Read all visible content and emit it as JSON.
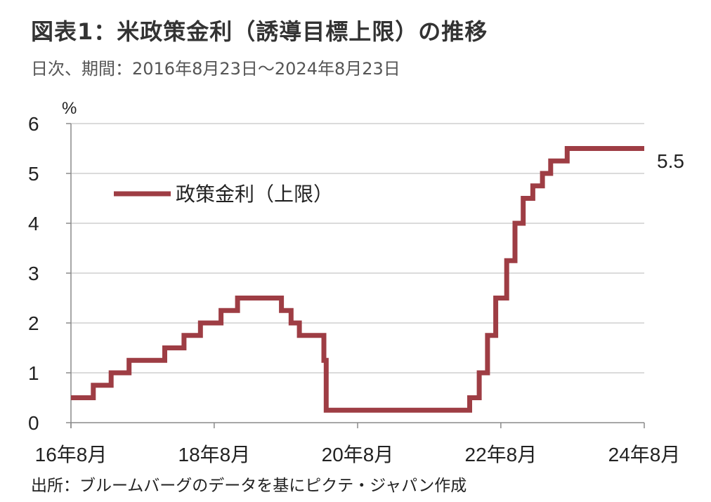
{
  "header": {
    "title": "図表1：米政策金利（誘導目標上限）の推移",
    "subtitle": "日次、期間：2016年8月23日～2024年8月23日"
  },
  "footer": {
    "source": "出所：ブルームバーグのデータを基にピクテ・ジャパン作成"
  },
  "chart_data": {
    "type": "line",
    "title": "図表1：米政策金利（誘導目標上限）の推移",
    "subtitle": "日次、期間：2016年8月23日～2024年8月23日",
    "y_unit_label": "%",
    "ylim": [
      0,
      6
    ],
    "y_ticks": [
      "0",
      "1",
      "2",
      "3",
      "4",
      "5",
      "6"
    ],
    "xlim": [
      "2016-08-23",
      "2024-08-23"
    ],
    "x_ticks": [
      {
        "date": "2016-08-23",
        "label": "16年8月"
      },
      {
        "date": "2018-08-23",
        "label": "18年8月"
      },
      {
        "date": "2020-08-23",
        "label": "20年8月"
      },
      {
        "date": "2022-08-23",
        "label": "22年8月"
      },
      {
        "date": "2024-08-23",
        "label": "24年8月"
      }
    ],
    "grid": true,
    "legend_position": "upper-left",
    "end_label": "5.5",
    "series": [
      {
        "name": "政策金利（上限）",
        "color": "#9e3d44",
        "step": true,
        "points": [
          [
            "2016-08-23",
            0.5
          ],
          [
            "2016-12-15",
            0.75
          ],
          [
            "2017-03-16",
            1.0
          ],
          [
            "2017-06-15",
            1.25
          ],
          [
            "2017-12-14",
            1.5
          ],
          [
            "2018-03-22",
            1.75
          ],
          [
            "2018-06-14",
            2.0
          ],
          [
            "2018-09-27",
            2.25
          ],
          [
            "2018-12-20",
            2.5
          ],
          [
            "2019-08-01",
            2.25
          ],
          [
            "2019-09-19",
            2.0
          ],
          [
            "2019-10-31",
            1.75
          ],
          [
            "2020-03-04",
            1.25
          ],
          [
            "2020-03-16",
            0.25
          ],
          [
            "2022-03-17",
            0.5
          ],
          [
            "2022-05-05",
            1.0
          ],
          [
            "2022-06-16",
            1.75
          ],
          [
            "2022-07-28",
            2.5
          ],
          [
            "2022-09-22",
            3.25
          ],
          [
            "2022-11-03",
            4.0
          ],
          [
            "2022-12-15",
            4.5
          ],
          [
            "2023-02-02",
            4.75
          ],
          [
            "2023-03-23",
            5.0
          ],
          [
            "2023-05-04",
            5.25
          ],
          [
            "2023-07-27",
            5.5
          ],
          [
            "2024-08-23",
            5.5
          ]
        ]
      }
    ]
  }
}
